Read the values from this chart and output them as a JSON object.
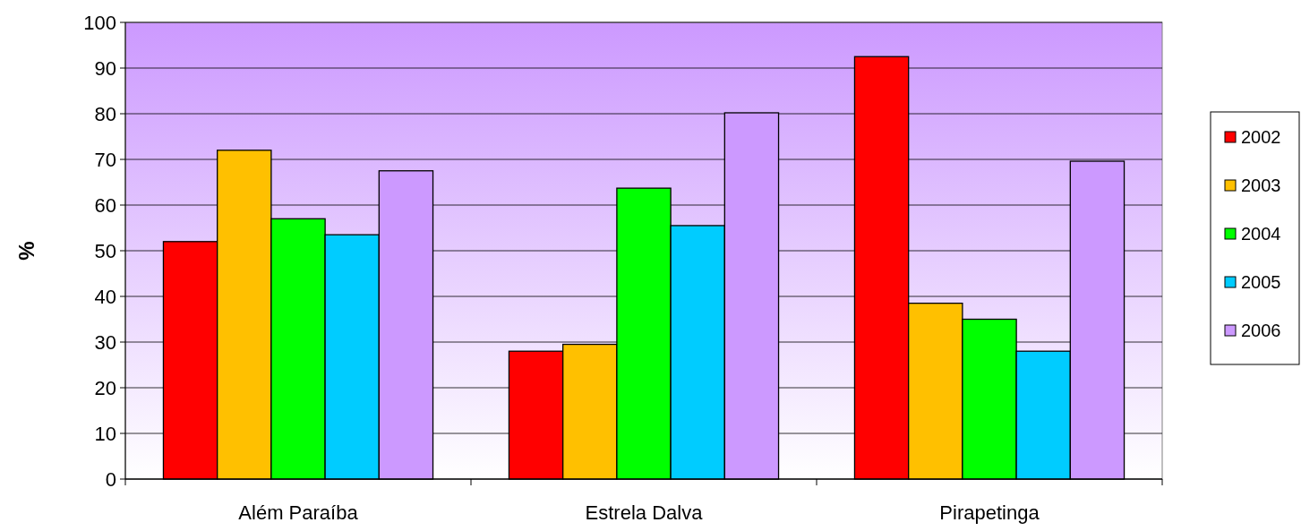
{
  "chart_data": {
    "type": "bar",
    "ylabel": "%",
    "categories": [
      "Além Paraíba",
      "Estrela Dalva",
      "Pirapetinga"
    ],
    "series": [
      {
        "name": "2002",
        "color": "#ff0000",
        "values": [
          52,
          28,
          92.5
        ]
      },
      {
        "name": "2003",
        "color": "#ffc000",
        "values": [
          72,
          29.5,
          38.5
        ]
      },
      {
        "name": "2004",
        "color": "#00ff00",
        "values": [
          57,
          63.7,
          35
        ]
      },
      {
        "name": "2005",
        "color": "#00ccff",
        "values": [
          53.5,
          55.5,
          28
        ]
      },
      {
        "name": "2006",
        "color": "#cc99ff",
        "values": [
          67.5,
          80.2,
          69.6
        ]
      }
    ],
    "ylim": [
      0,
      100
    ],
    "yticks": [
      0,
      10,
      20,
      30,
      40,
      50,
      60,
      70,
      80,
      90,
      100
    ],
    "grid": "y",
    "legend": "right"
  }
}
